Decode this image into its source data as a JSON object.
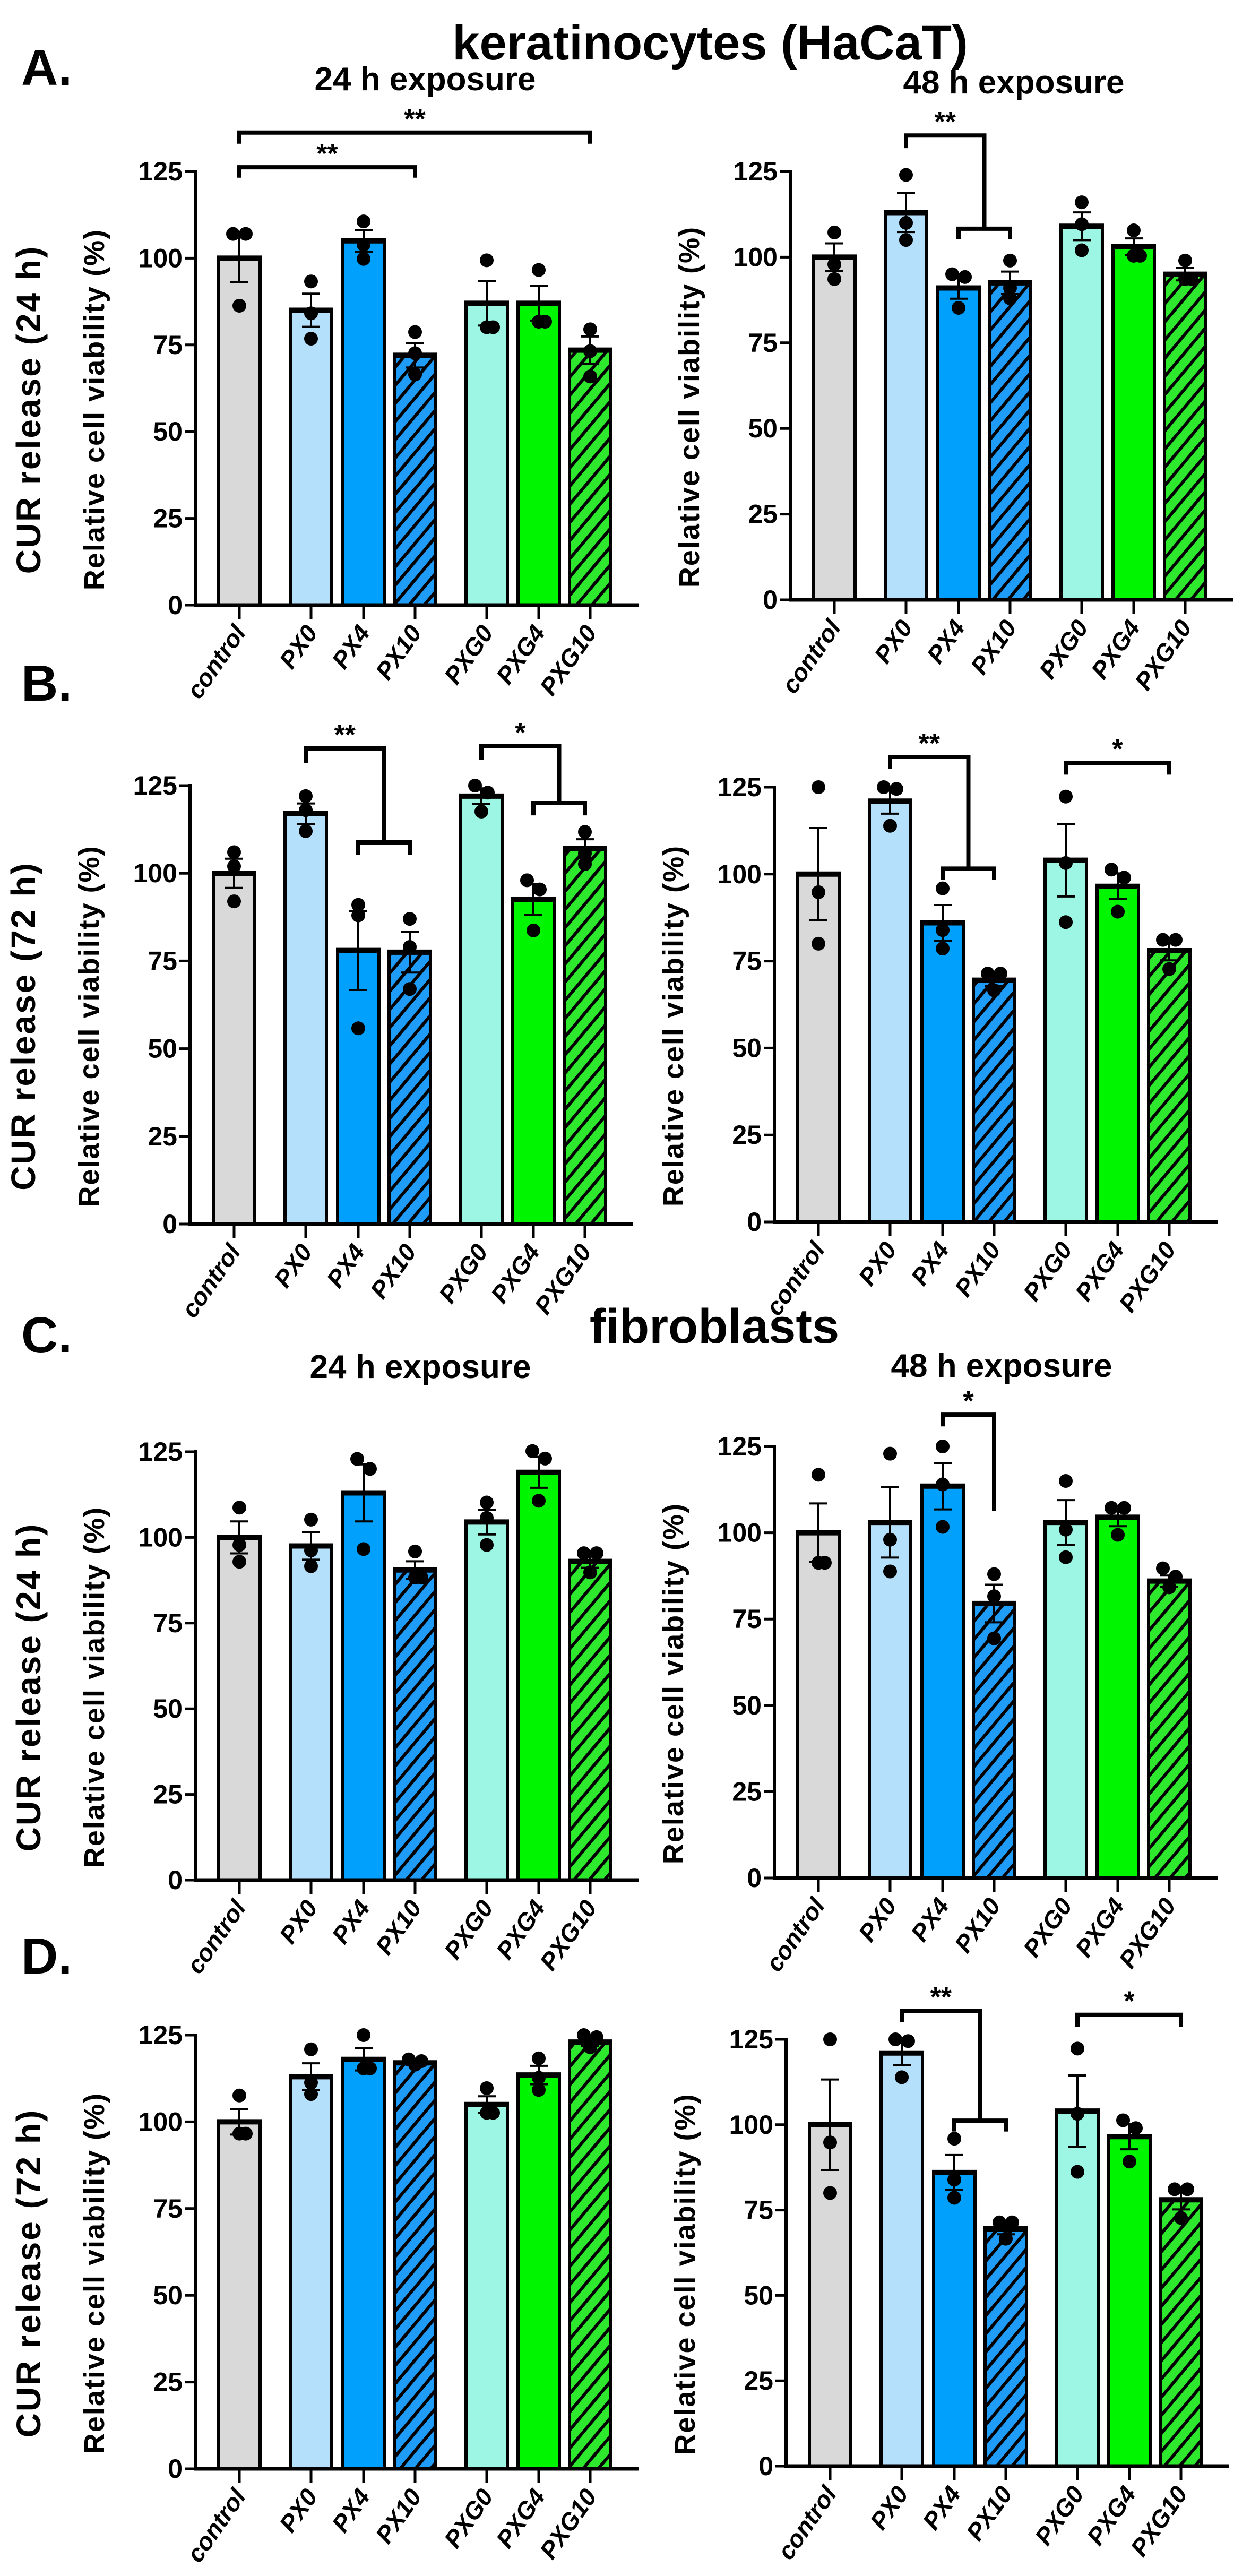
{
  "headings": {
    "keratinocytes": "keratinocytes (HaCaT)",
    "fibroblasts": "fibroblasts",
    "letters": [
      "A.",
      "B.",
      "C.",
      "D."
    ],
    "exposure_A": [
      "24 h exposure",
      "48 h exposure"
    ],
    "exposure_C": [
      "24 h exposure",
      "48 h exposure"
    ],
    "row_labels": [
      "CUR release (24 h)",
      "CUR release (72 h)",
      "CUR release (24 h)",
      "CUR release (72 h)"
    ]
  },
  "colors": {
    "control": "#d9d9d9",
    "PX0": "#b5e0fb",
    "PX4": "#00a0fc",
    "PX10": "#1f9cf8",
    "PXG0": "#9cf6e3",
    "PXG4": "#00f500",
    "PXG10": "#2ee82e"
  },
  "chart_data": [
    {
      "panel": "A",
      "cell_type": "keratinocytes (HaCaT)",
      "exposure": "24 h exposure",
      "type": "bar",
      "ylabel": "Relative cell viability (%)",
      "ylim": [
        0,
        125
      ],
      "yticks": [
        "0",
        "25",
        "50",
        "75",
        "100",
        "125"
      ],
      "categories": [
        "control",
        "PX0",
        "PX4",
        "PX10",
        "PXG0",
        "PXG4",
        "PXG10"
      ],
      "series": [
        {
          "name": "mean",
          "values": [
            100,
            85,
            105,
            72,
            87,
            87,
            73.5
          ]
        }
      ],
      "points": [
        [
          107,
          107,
          86.3
        ],
        [
          93.3,
          84.1,
          76.8
        ],
        [
          110.6,
          103.9,
          99.8
        ],
        [
          78.7,
          72.6,
          66.5
        ],
        [
          99.4,
          80.1,
          80.1
        ],
        [
          96.6,
          81.7,
          81.7
        ],
        [
          79.5,
          73.2,
          65.9
        ]
      ],
      "significance": [
        {
          "label": "**",
          "y": 126.2,
          "from": [
            0
          ],
          "from_end": 123.2,
          "to": [
            3
          ],
          "to_end": 123.2
        },
        {
          "label": "**",
          "y": 136.2,
          "from": [
            0
          ],
          "from_end": 133,
          "to": [
            6
          ],
          "to_end": 133
        }
      ]
    },
    {
      "panel": "A",
      "cell_type": "keratinocytes (HaCaT)",
      "exposure": "48 h exposure",
      "type": "bar",
      "ylabel": "Relative cell viability (%)",
      "ylim": [
        0,
        125
      ],
      "yticks": [
        "0",
        "25",
        "50",
        "75",
        "100",
        "125"
      ],
      "categories": [
        "control",
        "PX0",
        "PX4",
        "PX10",
        "PXG0",
        "PXG4",
        "PXG10"
      ],
      "series": [
        {
          "name": "mean",
          "values": [
            100,
            113,
            91,
            92.5,
            109,
            103,
            95
          ]
        }
      ],
      "points": [
        [
          107.2,
          97.9,
          93.6
        ],
        [
          124,
          110,
          105
        ],
        [
          95,
          94.2,
          85.2
        ],
        [
          99,
          91,
          88
        ],
        [
          116,
          109.6,
          102
        ],
        [
          107.8,
          100.4,
          100.4
        ],
        [
          99,
          93.6,
          93.6
        ]
      ],
      "significance": [
        {
          "label": "**",
          "y": 135.5,
          "from": [
            1
          ],
          "from_end": 131.8,
          "to": [
            2,
            3
          ],
          "to_end": 108.3,
          "sub_end": 105.3
        }
      ]
    },
    {
      "panel": "B",
      "cell_type": "keratinocytes (HaCaT)",
      "exposure": "24 h exposure",
      "type": "bar",
      "ylabel": "Relative cell viability (%)",
      "ylim": [
        0,
        125
      ],
      "yticks": [
        "0",
        "25",
        "50",
        "75",
        "100",
        "125"
      ],
      "categories": [
        "control",
        "PX0",
        "PX4",
        "PX10",
        "PXG0",
        "PXG4",
        "PXG10"
      ],
      "series": [
        {
          "name": "mean",
          "values": [
            100,
            117,
            78,
            77.5,
            122,
            92.5,
            107
          ]
        }
      ],
      "points": [
        [
          106,
          102,
          92
        ],
        [
          122,
          118,
          112
        ],
        [
          91,
          88,
          55.8
        ],
        [
          87,
          79,
          67
        ],
        [
          125,
          123,
          117.6
        ],
        [
          98,
          95.4,
          83.7
        ],
        [
          111.8,
          105.7,
          102.6
        ]
      ],
      "significance": [
        {
          "label": "**",
          "y": 135.6,
          "from": [
            1
          ],
          "from_end": 131.5,
          "to": [
            2,
            3
          ],
          "to_end": 108.8,
          "sub_end": 105.2
        },
        {
          "label": "*",
          "y": 136.2,
          "from": [
            4
          ],
          "from_end": 132.3,
          "to": [
            5,
            6
          ],
          "to_end": 120,
          "sub_end": 116.5
        }
      ]
    },
    {
      "panel": "B",
      "cell_type": "keratinocytes (HaCaT)",
      "exposure": "48 h exposure",
      "type": "bar",
      "ylabel": "Relative cell viability (%)",
      "ylim": [
        0,
        125
      ],
      "yticks": [
        "0",
        "25",
        "50",
        "75",
        "100",
        "125"
      ],
      "categories": [
        "control",
        "PX0",
        "PX4",
        "PX10",
        "PXG0",
        "PXG4",
        "PXG10"
      ],
      "series": [
        {
          "name": "mean",
          "values": [
            100,
            121,
            86,
            69.5,
            104,
            96.5,
            78
          ]
        }
      ],
      "points": [
        [
          125,
          94.8,
          80
        ],
        [
          125,
          124.5,
          113.9
        ],
        [
          95.9,
          83.9,
          78.6
        ],
        [
          71.4,
          71.4,
          66.6
        ],
        [
          122.3,
          103.2,
          86.2
        ],
        [
          101.3,
          99,
          89.2
        ],
        [
          81.1,
          81.1,
          72.7
        ]
      ],
      "significance": [
        {
          "label": "**",
          "y": 133.7,
          "from": [
            1
          ],
          "from_end": 130.3,
          "to": [
            2,
            3
          ],
          "to_end": 101.6,
          "sub_end": 98.4
        },
        {
          "label": "*",
          "y": 132,
          "from": [
            4
          ],
          "from_end": 128.6,
          "to": [
            6
          ],
          "to_end": 128.6
        }
      ]
    },
    {
      "panel": "C",
      "cell_type": "fibroblasts",
      "exposure": "24 h exposure",
      "type": "bar",
      "ylabel": "Relative cell viability (%)",
      "ylim": [
        0,
        125
      ],
      "yticks": [
        "0",
        "25",
        "50",
        "75",
        "100",
        "125"
      ],
      "categories": [
        "control",
        "PX0",
        "PX4",
        "PX10",
        "PXG0",
        "PXG4",
        "PXG10"
      ],
      "series": [
        {
          "name": "mean",
          "values": [
            100,
            97.5,
            113,
            90.5,
            104.5,
            119,
            93
          ]
        }
      ],
      "points": [
        [
          108.7,
          97.8,
          92.9
        ],
        [
          105.2,
          96.2,
          91.6
        ],
        [
          122.9,
          120,
          96.6
        ],
        [
          95.9,
          88.3,
          88.3
        ],
        [
          110.2,
          105.7,
          97.8
        ],
        [
          125.2,
          123,
          110.7
        ],
        [
          95.4,
          95.4,
          89.8
        ]
      ],
      "significance": []
    },
    {
      "panel": "C",
      "cell_type": "fibroblasts",
      "exposure": "48 h exposure",
      "type": "bar",
      "ylabel": "Relative cell viability (%)",
      "ylim": [
        0,
        125
      ],
      "yticks": [
        "0",
        "25",
        "50",
        "75",
        "100",
        "125"
      ],
      "categories": [
        "control",
        "PX0",
        "PX4",
        "PX10",
        "PXG0",
        "PXG4",
        "PXG10"
      ],
      "series": [
        {
          "name": "mean",
          "values": [
            100,
            103,
            113.5,
            79.5,
            103,
            104.5,
            86
          ]
        }
      ],
      "points": [
        [
          116.8,
          91.3,
          91.3
        ],
        [
          122.9,
          98,
          88.8
        ],
        [
          125,
          114,
          101.7
        ],
        [
          88,
          81.6,
          69.4
        ],
        [
          115,
          100.9,
          92.9
        ],
        [
          107.2,
          107.2,
          99.4
        ],
        [
          89.7,
          87.3,
          84.2
        ]
      ],
      "significance": [
        {
          "label": "*",
          "y": 134.2,
          "from": [
            2
          ],
          "from_end": 130.8,
          "to": [
            3
          ],
          "to_end": 106.3
        }
      ]
    },
    {
      "panel": "D",
      "cell_type": "fibroblasts",
      "exposure": "24 h exposure",
      "type": "bar",
      "ylabel": "Relative cell viability (%)",
      "ylim": [
        0,
        125
      ],
      "yticks": [
        "0",
        "25",
        "50",
        "75",
        "100",
        "125"
      ],
      "categories": [
        "control",
        "PX0",
        "PX4",
        "PX10",
        "PXG0",
        "PXG4",
        "PXG10"
      ],
      "series": [
        {
          "name": "mean",
          "values": [
            100,
            113,
            118,
            117,
            105,
            113.5,
            123
          ]
        }
      ],
      "points": [
        [
          107.6,
          96.6,
          96.6
        ],
        [
          120.9,
          111.3,
          108
        ],
        [
          125,
          115.4,
          115.4
        ],
        [
          118,
          117.5,
          116.5
        ],
        [
          109.7,
          102.6,
          102.6
        ],
        [
          118.3,
          112.7,
          109.2
        ],
        [
          125,
          124.4,
          121.5
        ]
      ],
      "significance": []
    },
    {
      "panel": "D",
      "cell_type": "fibroblasts",
      "exposure": "48 h exposure",
      "type": "bar",
      "ylabel": "Relative cell viability (%)",
      "ylim": [
        0,
        125
      ],
      "yticks": [
        "0",
        "25",
        "50",
        "75",
        "100",
        "125"
      ],
      "categories": [
        "control",
        "PX0",
        "PX4",
        "PX10",
        "PXG0",
        "PXG4",
        "PXG10"
      ],
      "series": [
        {
          "name": "mean",
          "values": [
            100,
            121,
            86,
            69.5,
            104,
            96.5,
            78
          ]
        }
      ],
      "points": [
        [
          125,
          94.8,
          80
        ],
        [
          125,
          124.5,
          113.9
        ],
        [
          95.9,
          83.9,
          78.6
        ],
        [
          71.4,
          71.4,
          66.6
        ],
        [
          122.3,
          103.2,
          86.2
        ],
        [
          101.3,
          99,
          89.2
        ],
        [
          81.1,
          81.1,
          72.7
        ]
      ],
      "significance": [
        {
          "label": "**",
          "y": 133.4,
          "from": [
            1
          ],
          "from_end": 130,
          "to": [
            2,
            3
          ],
          "to_end": 101.2,
          "sub_end": 98
        },
        {
          "label": "*",
          "y": 132.2,
          "from": [
            4
          ],
          "from_end": 128.6,
          "to": [
            6
          ],
          "to_end": 128.6
        }
      ]
    }
  ]
}
